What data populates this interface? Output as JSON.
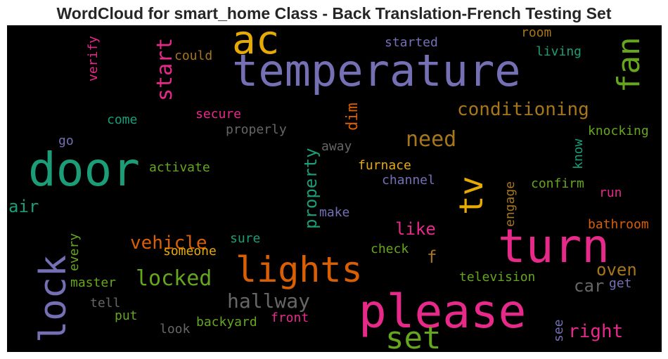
{
  "title": "WordCloud for smart_home Class - Back Translation-French Testing Set",
  "colors": {
    "purple": "#7570b3",
    "orange": "#d95f02",
    "gold": "#e6ab02",
    "green": "#66a61e",
    "teal": "#1b9e77",
    "pink": "#e7298a",
    "brown": "#a6761d",
    "gray": "#666666"
  },
  "words": [
    {
      "text": "temperature",
      "color": "purple"
    },
    {
      "text": "ac",
      "color": "gold"
    },
    {
      "text": "fan",
      "color": "green"
    },
    {
      "text": "door",
      "color": "teal"
    },
    {
      "text": "turn",
      "color": "pink"
    },
    {
      "text": "please",
      "color": "pink"
    },
    {
      "text": "lights",
      "color": "orange"
    },
    {
      "text": "lock",
      "color": "purple"
    },
    {
      "text": "set",
      "color": "green"
    },
    {
      "text": "tv",
      "color": "gold"
    },
    {
      "text": "conditioning",
      "color": "brown"
    },
    {
      "text": "need",
      "color": "brown"
    },
    {
      "text": "start",
      "color": "pink"
    },
    {
      "text": "locked",
      "color": "green"
    },
    {
      "text": "hallway",
      "color": "gray"
    },
    {
      "text": "vehicle",
      "color": "orange"
    },
    {
      "text": "property",
      "color": "teal"
    },
    {
      "text": "right",
      "color": "pink"
    },
    {
      "text": "oven",
      "color": "brown"
    },
    {
      "text": "car",
      "color": "gray"
    },
    {
      "text": "like",
      "color": "pink"
    },
    {
      "text": "air",
      "color": "teal"
    },
    {
      "text": "dim",
      "color": "orange"
    },
    {
      "text": "f",
      "color": "brown"
    },
    {
      "text": "knocking",
      "color": "green"
    },
    {
      "text": "started",
      "color": "purple"
    },
    {
      "text": "room",
      "color": "brown"
    },
    {
      "text": "living",
      "color": "teal"
    },
    {
      "text": "could",
      "color": "brown"
    },
    {
      "text": "verify",
      "color": "pink"
    },
    {
      "text": "come",
      "color": "teal"
    },
    {
      "text": "secure",
      "color": "pink"
    },
    {
      "text": "properly",
      "color": "gray"
    },
    {
      "text": "go",
      "color": "purple"
    },
    {
      "text": "away",
      "color": "gray"
    },
    {
      "text": "activate",
      "color": "green"
    },
    {
      "text": "furnace",
      "color": "gold"
    },
    {
      "text": "channel",
      "color": "purple"
    },
    {
      "text": "know",
      "color": "teal"
    },
    {
      "text": "confirm",
      "color": "green"
    },
    {
      "text": "engage",
      "color": "brown"
    },
    {
      "text": "run",
      "color": "pink"
    },
    {
      "text": "make",
      "color": "purple"
    },
    {
      "text": "bathroom",
      "color": "orange"
    },
    {
      "text": "sure",
      "color": "teal"
    },
    {
      "text": "someone",
      "color": "gold"
    },
    {
      "text": "every",
      "color": "green"
    },
    {
      "text": "check",
      "color": "green"
    },
    {
      "text": "master",
      "color": "green"
    },
    {
      "text": "television",
      "color": "green"
    },
    {
      "text": "get",
      "color": "purple"
    },
    {
      "text": "tell",
      "color": "gray"
    },
    {
      "text": "put",
      "color": "green"
    },
    {
      "text": "look",
      "color": "gray"
    },
    {
      "text": "backyard",
      "color": "green"
    },
    {
      "text": "front",
      "color": "pink"
    },
    {
      "text": "see",
      "color": "purple"
    }
  ]
}
